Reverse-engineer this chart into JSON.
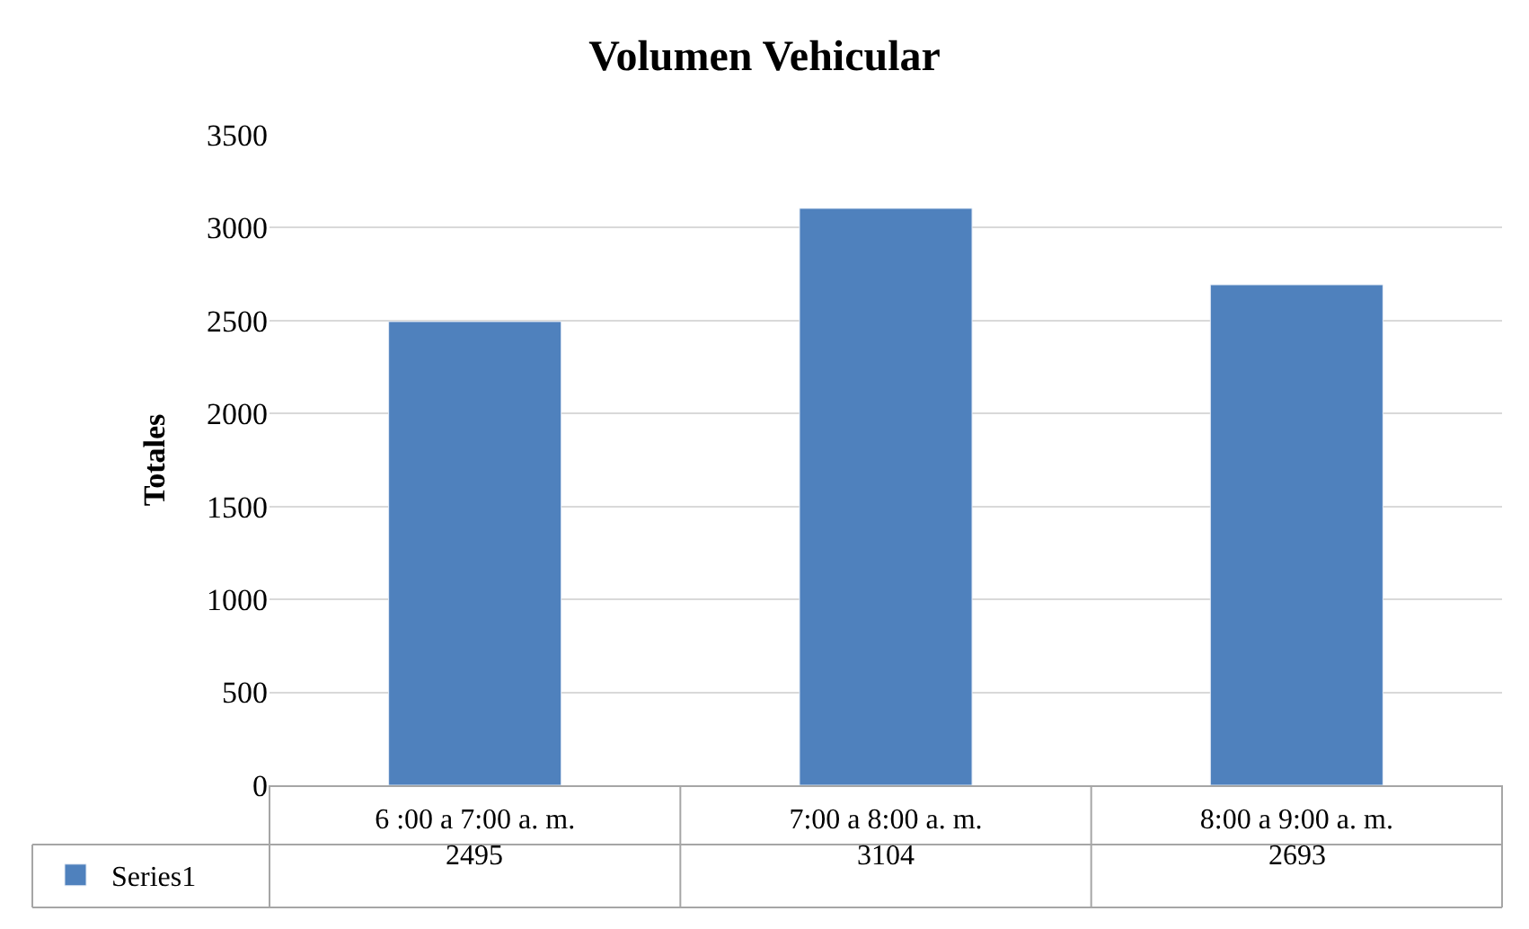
{
  "chart_data": {
    "type": "bar",
    "title": "Volumen Vehicular",
    "ylabel": "Totales",
    "categories": [
      "6 :00 a 7:00 a. m.",
      "7:00 a 8:00 a. m.",
      "8:00 a 9:00 a. m."
    ],
    "series": [
      {
        "name": "Series1",
        "color": "#4f81bd",
        "values": [
          2495,
          3104,
          2693
        ]
      }
    ],
    "ylim": [
      0,
      3500
    ],
    "yticks": [
      0,
      500,
      1000,
      1500,
      2000,
      2500,
      3000,
      3500
    ],
    "grid": "y",
    "legend": "bottom left",
    "data_labels": true
  }
}
